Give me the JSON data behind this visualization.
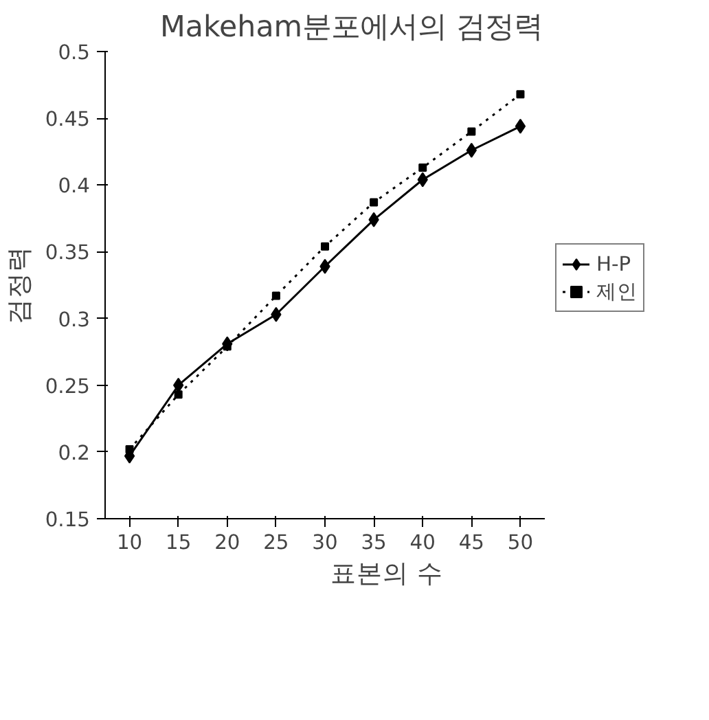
{
  "chart_data": {
    "type": "line",
    "title": "Makeham분포에서의 검정력",
    "xlabel": "표본의 수",
    "ylabel": "검정력",
    "categories": [
      "10",
      "15",
      "20",
      "25",
      "30",
      "35",
      "40",
      "45",
      "50"
    ],
    "series": [
      {
        "name": "H-P",
        "color": "#000000",
        "marker": "diamond",
        "line_style": "solid",
        "values": [
          0.197,
          0.25,
          0.281,
          0.303,
          0.339,
          0.374,
          0.404,
          0.426,
          0.444
        ]
      },
      {
        "name": "제인",
        "color": "#000000",
        "marker": "square",
        "line_style": "dotted",
        "values": [
          0.202,
          0.243,
          0.279,
          0.317,
          0.354,
          0.387,
          0.413,
          0.44,
          0.468
        ]
      }
    ],
    "ylim": [
      0.15,
      0.5
    ],
    "yticks": [
      0.15,
      0.2,
      0.25,
      0.3,
      0.35,
      0.4,
      0.45,
      0.5
    ],
    "grid": false,
    "legend": "right"
  }
}
